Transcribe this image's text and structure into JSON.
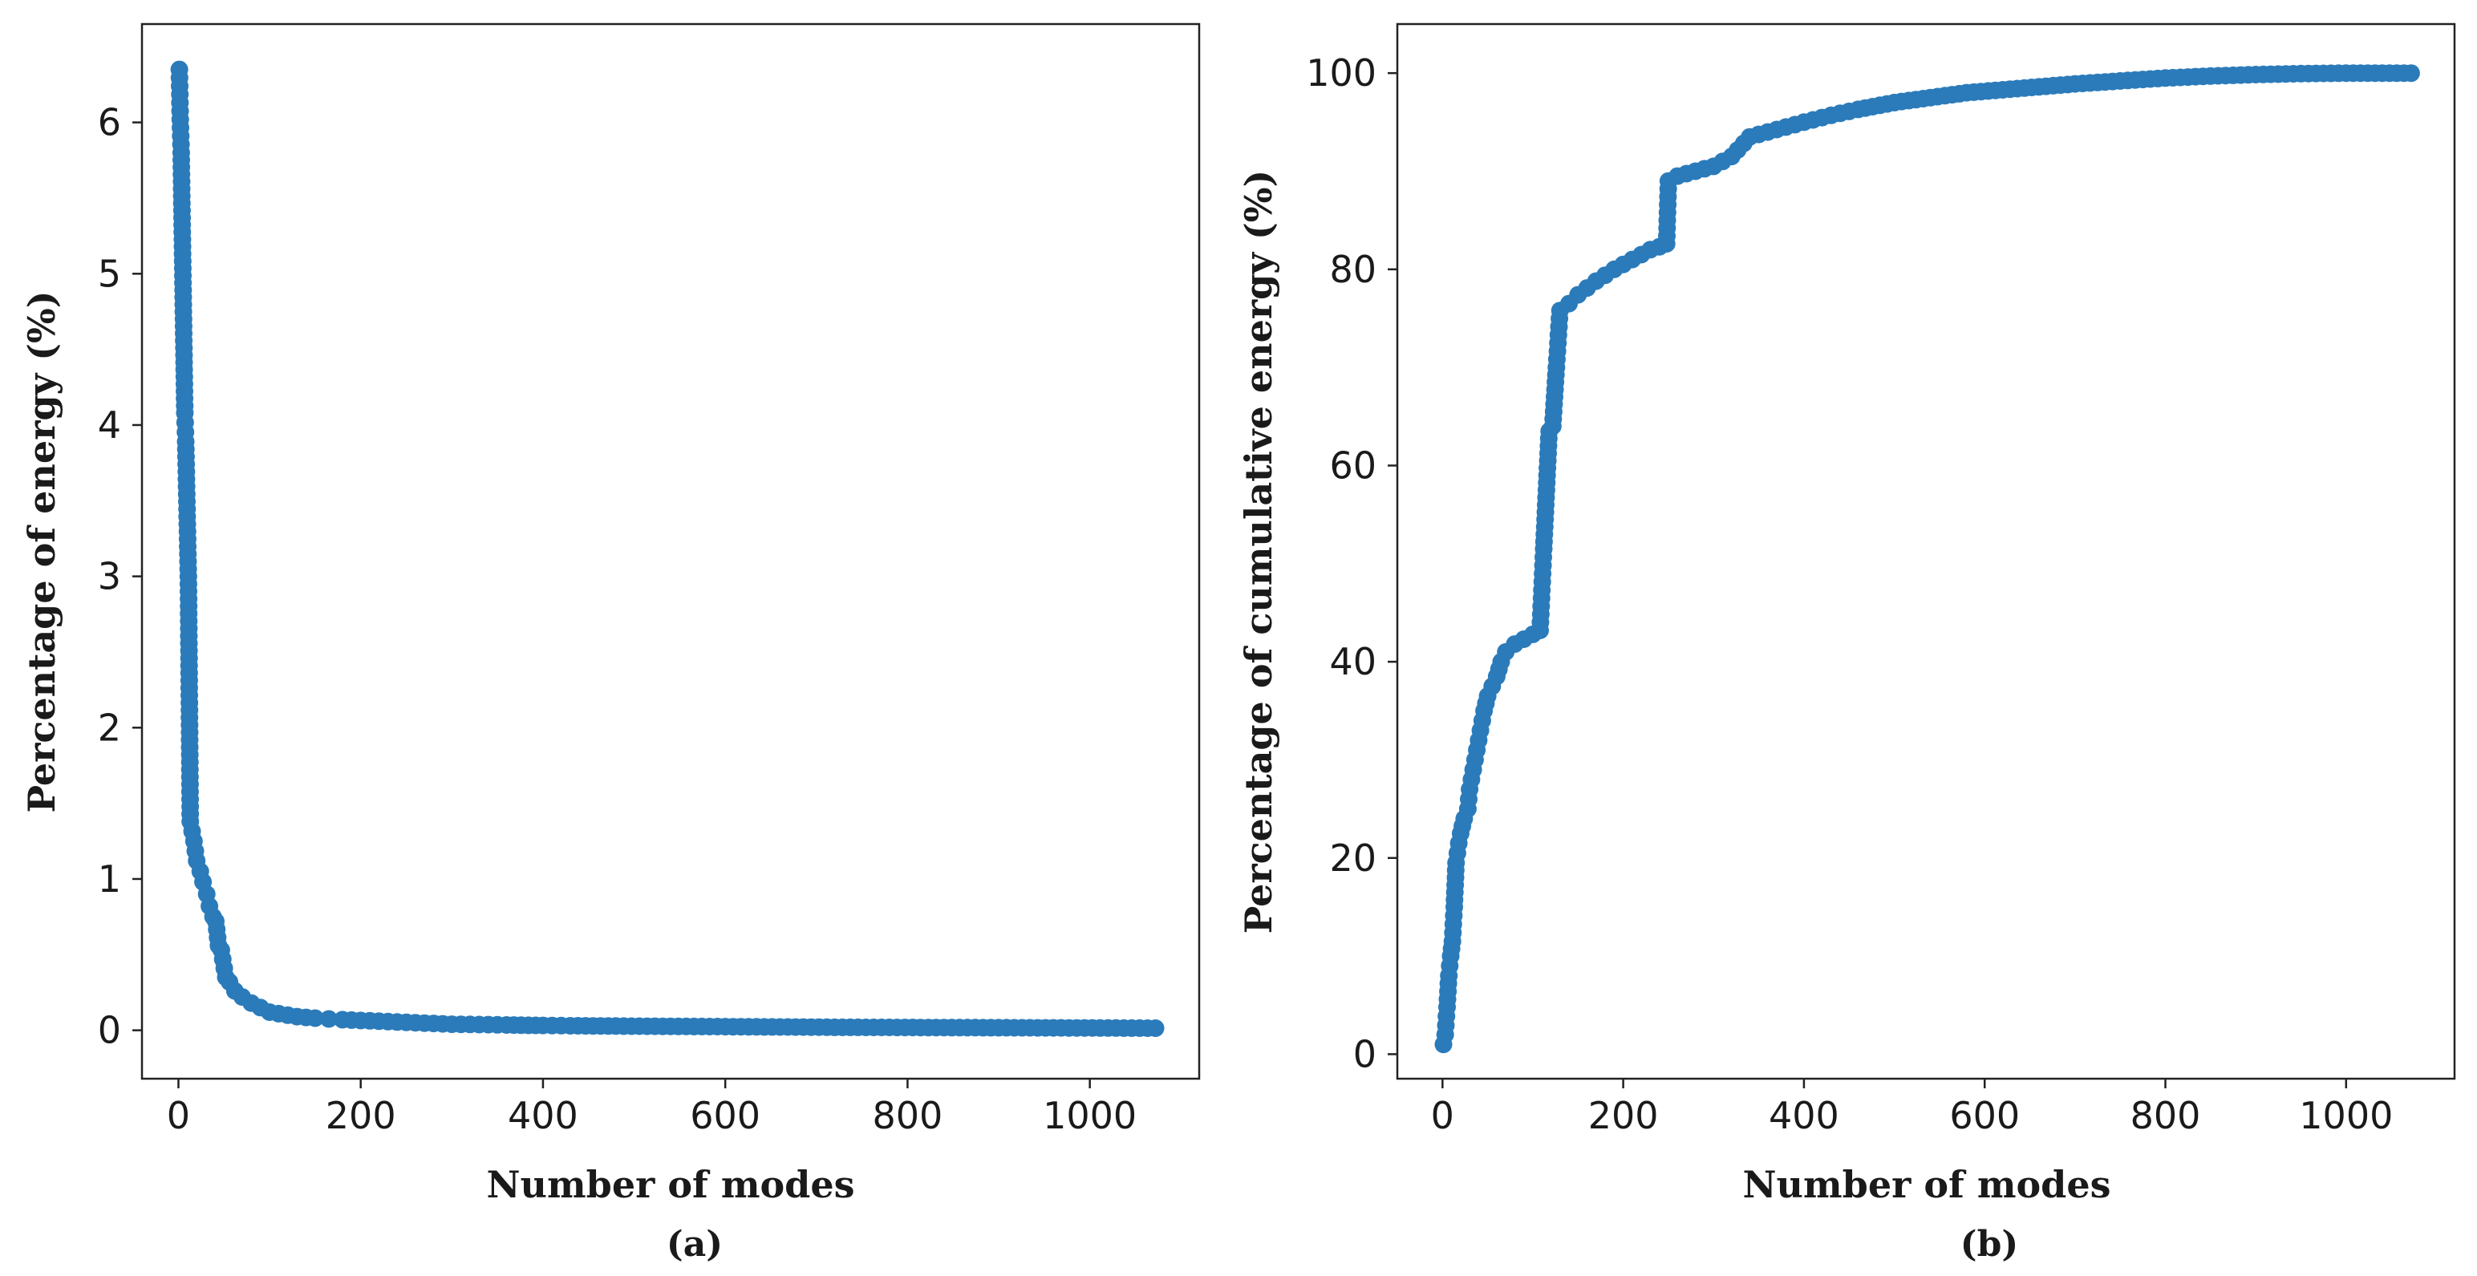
{
  "chart_data": [
    {
      "id": "a",
      "type": "line",
      "title": "",
      "panel_label": "(a)",
      "xlabel": "Number of modes",
      "ylabel": "Percentage of energy (%)",
      "xlim": [
        -40,
        1120
      ],
      "ylim": [
        -0.32,
        6.65
      ],
      "xticks": [
        0,
        200,
        400,
        600,
        800,
        1000
      ],
      "yticks": [
        0,
        1,
        2,
        3,
        4,
        5,
        6
      ],
      "marker": "circle",
      "series": [
        {
          "name": "Percentage of energy",
          "color": "#2b7bba",
          "x": [
            1,
            2,
            3,
            7,
            8,
            11,
            13,
            17,
            20,
            24,
            27,
            31,
            34,
            38,
            41,
            44,
            47,
            52,
            56,
            62,
            70,
            80,
            90,
            100,
            110,
            120,
            130,
            140,
            150,
            165,
            180,
            200,
            220,
            240,
            260,
            280,
            300,
            330,
            360,
            400,
            430,
            480,
            540,
            600,
            660,
            720,
            780,
            840,
            900,
            960,
            1020,
            1072
          ],
          "y": [
            6.35,
            6.02,
            5.8,
            4.08,
            3.89,
            2.95,
            1.38,
            1.25,
            1.12,
            1.05,
            0.98,
            0.9,
            0.82,
            0.75,
            0.72,
            0.56,
            0.53,
            0.35,
            0.32,
            0.26,
            0.22,
            0.18,
            0.15,
            0.12,
            0.11,
            0.1,
            0.09,
            0.085,
            0.08,
            0.075,
            0.07,
            0.065,
            0.06,
            0.055,
            0.05,
            0.045,
            0.04,
            0.038,
            0.035,
            0.032,
            0.03,
            0.028,
            0.026,
            0.024,
            0.022,
            0.02,
            0.019,
            0.018,
            0.017,
            0.016,
            0.015,
            0.014
          ]
        }
      ]
    },
    {
      "id": "b",
      "type": "line",
      "title": "",
      "panel_label": "(b)",
      "xlabel": "Number of modes",
      "ylabel": "Percentage of cumulative energy (%)",
      "xlim": [
        -50,
        1120
      ],
      "ylim": [
        -2.5,
        105
      ],
      "xticks": [
        0,
        200,
        400,
        600,
        800,
        1000
      ],
      "yticks": [
        0,
        20,
        40,
        60,
        80,
        100
      ],
      "marker": "circle",
      "series": [
        {
          "name": "Percentage of cumulative energy",
          "color": "#2b7bba",
          "x": [
            1,
            3,
            5,
            7,
            9,
            11,
            13,
            15,
            18,
            20,
            24,
            28,
            30,
            34,
            38,
            42,
            46,
            50,
            55,
            60,
            65,
            70,
            80,
            90,
            100,
            108,
            110,
            112,
            115,
            118,
            122,
            126,
            130,
            140,
            150,
            160,
            170,
            180,
            190,
            200,
            210,
            220,
            230,
            240,
            248,
            250,
            260,
            280,
            300,
            320,
            340,
            360,
            380,
            400,
            430,
            460,
            500,
            540,
            580,
            620,
            660,
            700,
            750,
            800,
            850,
            900,
            950,
            1000,
            1040,
            1072
          ],
          "y": [
            1,
            2,
            4.8,
            8,
            10,
            11.5,
            15,
            19.5,
            21.5,
            22.5,
            24,
            25,
            27,
            29,
            31,
            33,
            35,
            36.5,
            37.5,
            38.5,
            40,
            41,
            41.8,
            42.3,
            42.8,
            43.2,
            47.3,
            51.5,
            57.5,
            63.5,
            64,
            70,
            75.8,
            76.5,
            77.4,
            78.1,
            78.8,
            79.4,
            80,
            80.5,
            81,
            81.5,
            82,
            82.3,
            82.6,
            89,
            89.5,
            90,
            90.5,
            91.5,
            93.5,
            94,
            94.5,
            95,
            95.7,
            96.3,
            97,
            97.5,
            98,
            98.3,
            98.6,
            98.9,
            99.2,
            99.5,
            99.7,
            99.85,
            99.95,
            100,
            100,
            100
          ]
        }
      ]
    }
  ]
}
